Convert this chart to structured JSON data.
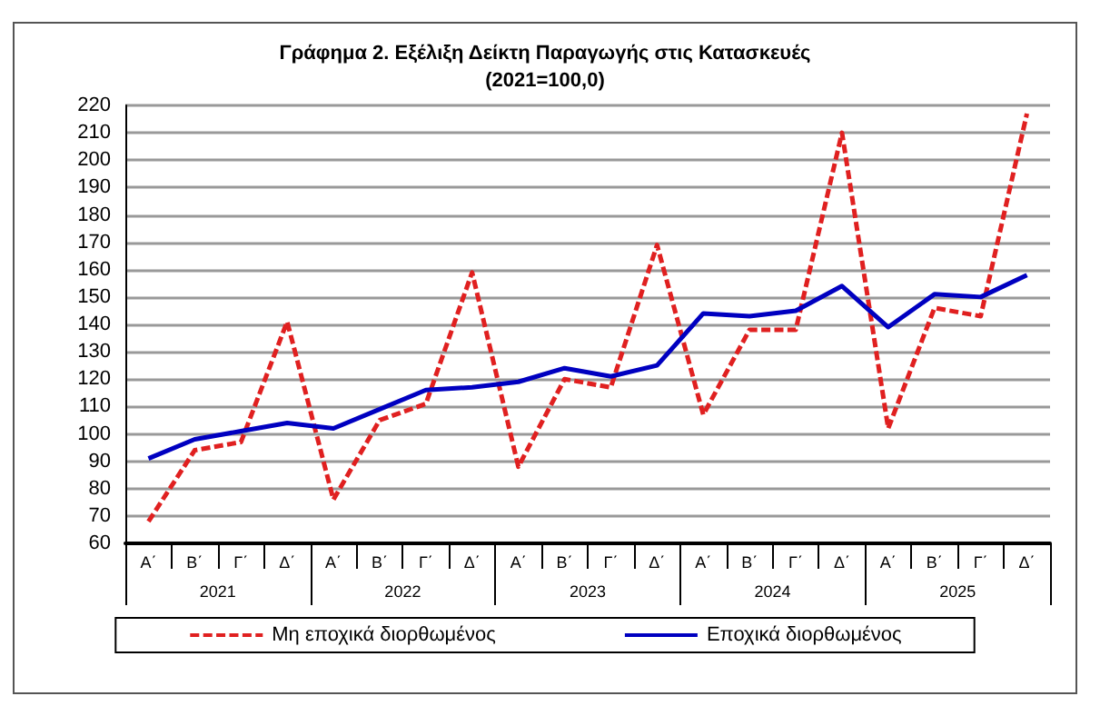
{
  "chart_data": {
    "type": "line",
    "title": "Γράφημα 2. Εξέλιξη Δείκτη Παραγωγής στις Κατασκευές",
    "subtitle": "(2021=100,0)",
    "categories": [
      "Α΄",
      "Β΄",
      "Γ΄",
      "Δ΄",
      "Α΄",
      "Β΄",
      "Γ΄",
      "Δ΄",
      "Α΄",
      "Β΄",
      "Γ΄",
      "Δ΄",
      "Α΄",
      "Β΄",
      "Γ΄",
      "Δ΄",
      "Α΄",
      "Β΄",
      "Γ΄",
      "Δ΄"
    ],
    "annotations": [
      "2021",
      "2022",
      "2023",
      "2024",
      "2025"
    ],
    "series": [
      {
        "name": "Μη εποχικά διορθωμένος",
        "color": "#e02020",
        "line_style": "dashed",
        "values": [
          68,
          94,
          97,
          141,
          76,
          105,
          111,
          159,
          88,
          120,
          117,
          169,
          107,
          138,
          138,
          210,
          102,
          146,
          143,
          217
        ]
      },
      {
        "name": "Εποχικά διορθωμένος",
        "color": "#0000c0",
        "line_style": "solid",
        "values": [
          91,
          98,
          101,
          104,
          102,
          109,
          116,
          117,
          119,
          124,
          121,
          125,
          144,
          143,
          145,
          154,
          139,
          151,
          150,
          158
        ]
      }
    ],
    "ylim": [
      60,
      220
    ],
    "yticks": [
      60,
      70,
      80,
      90,
      100,
      110,
      120,
      130,
      140,
      150,
      160,
      170,
      180,
      190,
      200,
      210,
      220
    ],
    "grid": "y",
    "legend": "bottom",
    "marker": "none"
  }
}
